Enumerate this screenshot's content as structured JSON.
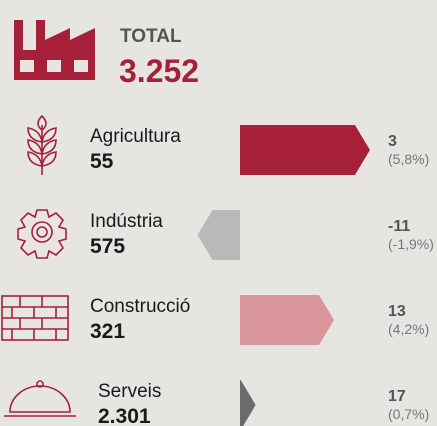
{
  "header": {
    "title": "TOTAL",
    "value": "3.252"
  },
  "items": [
    {
      "label": "Agricultura",
      "value": "55",
      "change": "3",
      "pct": 5.8,
      "pct_label": "(5,8%)",
      "color": "#a6203a"
    },
    {
      "label": "Indústria",
      "value": "575",
      "change": "-11",
      "pct": -1.9,
      "pct_label": "(-1,9%)",
      "color": "#b9b9b9"
    },
    {
      "label": "Construcció",
      "value": "321",
      "change": "13",
      "pct": 4.2,
      "pct_label": "(4,2%)",
      "color": "#d9969a"
    },
    {
      "label": "Serveis",
      "value": "2.301",
      "change": "17",
      "pct": 0.7,
      "pct_label": "(0,7%)",
      "color": "#6b6b6b"
    }
  ]
}
